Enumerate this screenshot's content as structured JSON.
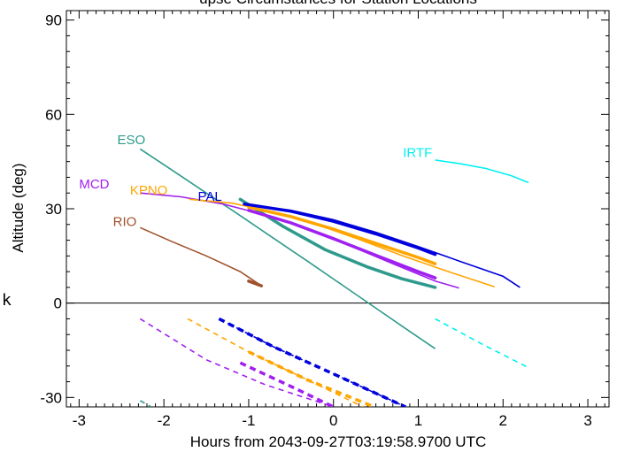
{
  "chart_data": {
    "type": "line",
    "title": "",
    "title_visible_fragment": "upse Circumstances for Station Locations",
    "xlabel": "Hours from 2043-09-27T03:19:58.9700 UTC",
    "ylabel": "Altitude (deg)",
    "xlim": [
      -3.15,
      3.25
    ],
    "ylim": [
      -33,
      93
    ],
    "x_ticks": [
      -3,
      -2,
      -1,
      0,
      1,
      2,
      3
    ],
    "y_ticks": [
      -30,
      0,
      30,
      60,
      90
    ],
    "zero_line": true,
    "stray_label": "k",
    "series": [
      {
        "name": "ESO",
        "color": "#2e9a8c",
        "label_pos": [
          -2.55,
          50.5
        ],
        "thin": [
          [
            -2.28,
            49.0
          ],
          [
            -1.9,
            42.2
          ],
          [
            -1.5,
            35.0
          ],
          [
            -1.1,
            27.8
          ],
          [
            -0.7,
            20.5
          ],
          [
            -0.3,
            13.2
          ],
          [
            0.1,
            5.8
          ],
          [
            0.5,
            -1.6
          ],
          [
            0.9,
            -9.0
          ],
          [
            1.2,
            -14.5
          ]
        ],
        "thick": [
          [
            -1.1,
            33.0
          ],
          [
            -0.6,
            24.5
          ],
          [
            -0.1,
            17.0
          ],
          [
            0.4,
            11.5
          ],
          [
            0.8,
            7.8
          ],
          [
            1.2,
            5.0
          ]
        ],
        "dashed": [
          [
            -2.28,
            -31.0
          ],
          [
            -2.15,
            -33.0
          ]
        ]
      },
      {
        "name": "IRTF",
        "color": "#00f0f0",
        "label_pos": [
          0.82,
          46.5
        ],
        "thin": [
          [
            1.2,
            45.5
          ],
          [
            1.5,
            44.3
          ],
          [
            1.8,
            42.8
          ],
          [
            2.1,
            40.5
          ],
          [
            2.3,
            38.3
          ]
        ],
        "dashed": [
          [
            1.2,
            -5.0
          ],
          [
            1.75,
            -13.0
          ],
          [
            2.3,
            -20.5
          ]
        ]
      },
      {
        "name": "MCD",
        "color": "#a020f0",
        "label_pos": [
          -3.0,
          36.5
        ],
        "thin": [
          [
            -2.28,
            35.0
          ],
          [
            -1.8,
            33.8
          ],
          [
            -1.3,
            31.5
          ],
          [
            -0.8,
            28.0
          ],
          [
            -0.3,
            23.5
          ],
          [
            0.2,
            18.2
          ],
          [
            0.7,
            12.5
          ],
          [
            1.2,
            7.0
          ],
          [
            1.48,
            4.8
          ]
        ],
        "thick": [
          [
            -1.0,
            29.5
          ],
          [
            -0.5,
            25.5
          ],
          [
            0.0,
            20.5
          ],
          [
            0.5,
            15.2
          ],
          [
            1.0,
            10.0
          ],
          [
            1.2,
            8.0
          ]
        ],
        "dashed": [
          [
            -2.28,
            -5.0
          ],
          [
            -1.5,
            -18.0
          ],
          [
            -0.8,
            -26.0
          ],
          [
            0.0,
            -33.0
          ]
        ],
        "dashed_thick": [
          [
            -1.1,
            -19.0
          ],
          [
            -0.5,
            -26.5
          ],
          [
            0.0,
            -33.0
          ]
        ]
      },
      {
        "name": "KPNO",
        "color": "#ffa500",
        "label_pos": [
          -2.4,
          34.5
        ],
        "thin": [
          [
            -1.7,
            33.0
          ],
          [
            -1.2,
            31.8
          ],
          [
            -0.7,
            29.0
          ],
          [
            -0.2,
            25.0
          ],
          [
            0.3,
            20.3
          ],
          [
            0.8,
            15.2
          ],
          [
            1.3,
            10.5
          ],
          [
            1.9,
            5.2
          ]
        ],
        "thick": [
          [
            -1.0,
            30.5
          ],
          [
            -0.5,
            27.5
          ],
          [
            0.0,
            23.5
          ],
          [
            0.5,
            19.0
          ],
          [
            1.0,
            14.5
          ],
          [
            1.2,
            12.5
          ]
        ],
        "dashed": [
          [
            -1.72,
            -5.0
          ],
          [
            -1.0,
            -15.5
          ],
          [
            -0.3,
            -24.5
          ],
          [
            0.35,
            -33.0
          ]
        ],
        "dashed_thick": [
          [
            -1.0,
            -15.5
          ],
          [
            -0.3,
            -24.5
          ],
          [
            0.48,
            -33.0
          ]
        ]
      },
      {
        "name": "PAL",
        "color": "#0000dd",
        "label_pos": [
          -1.6,
          32.5
        ],
        "thin": [
          [
            -1.05,
            31.5
          ],
          [
            -0.5,
            29.5
          ],
          [
            0.0,
            26.5
          ],
          [
            0.5,
            22.5
          ],
          [
            1.0,
            18.0
          ],
          [
            1.5,
            13.2
          ],
          [
            2.0,
            8.5
          ],
          [
            2.2,
            5.0
          ]
        ],
        "thick": [
          [
            -1.05,
            31.5
          ],
          [
            -0.5,
            29.2
          ],
          [
            0.0,
            26.0
          ],
          [
            0.5,
            22.0
          ],
          [
            1.0,
            17.5
          ],
          [
            1.2,
            15.5
          ]
        ],
        "dashed": [
          [
            -1.35,
            -5.0
          ],
          [
            -0.7,
            -14.0
          ],
          [
            0.0,
            -22.5
          ],
          [
            0.85,
            -33.0
          ]
        ],
        "dashed_thick": [
          [
            -1.35,
            -5.0
          ],
          [
            -0.7,
            -14.0
          ],
          [
            0.0,
            -22.5
          ],
          [
            0.85,
            -33.0
          ]
        ]
      },
      {
        "name": "RIO",
        "color": "#a0522d",
        "label_pos": [
          -2.6,
          24.5
        ],
        "thin": [
          [
            -2.28,
            24.0
          ],
          [
            -1.9,
            19.5
          ],
          [
            -1.5,
            15.0
          ],
          [
            -1.1,
            10.0
          ],
          [
            -0.85,
            5.5
          ]
        ],
        "thick": [
          [
            -1.0,
            7.0
          ],
          [
            -0.85,
            5.5
          ]
        ]
      }
    ]
  }
}
